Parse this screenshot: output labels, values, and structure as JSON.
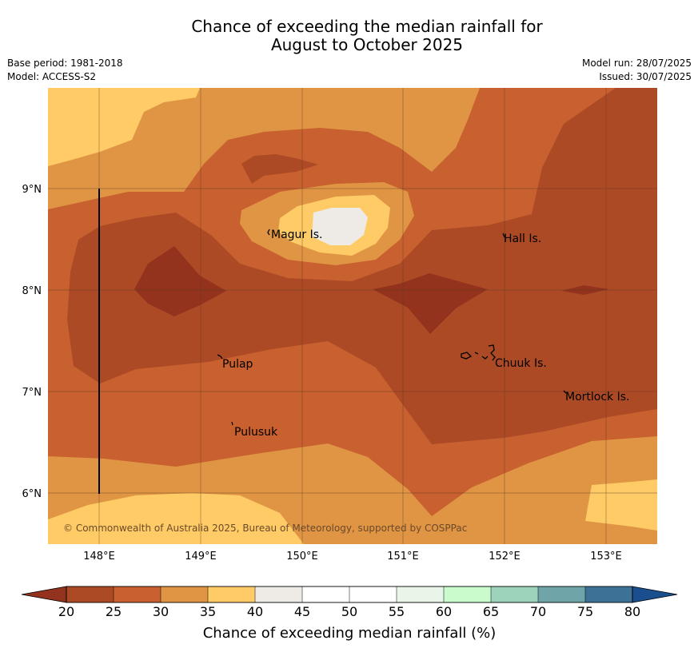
{
  "title": {
    "line1": "Chance of exceeding the median rainfall for",
    "line2": "August to October 2025"
  },
  "meta": {
    "base_period": "Base period: 1981-2018",
    "model": "Model: ACCESS-S2",
    "model_run": "Model run: 28/07/2025",
    "issued": "Issued: 30/07/2025"
  },
  "map": {
    "lon_labels": [
      "148°E",
      "149°E",
      "150°E",
      "151°E",
      "152°E",
      "153°E"
    ],
    "lat_labels": [
      "9°N",
      "8°N",
      "7°N",
      "6°N"
    ],
    "places": {
      "magur": "Magur Is.",
      "hall": "Hall Is.",
      "pulap": "Pulap",
      "chuuk": "Chuuk Is.",
      "mortlock": "Mortlock Is.",
      "pulusuk": "Pulusuk"
    },
    "copyright": "© Commonwealth of Australia 2025, Bureau of Meteorology, supported by COSPPac"
  },
  "colorbar": {
    "ticks": [
      "20",
      "25",
      "30",
      "35",
      "40",
      "45",
      "50",
      "55",
      "60",
      "65",
      "70",
      "75",
      "80"
    ],
    "title": "Chance of exceeding median rainfall (%)",
    "colors": [
      "#ad4a26",
      "#c8602f",
      "#e09544",
      "#fecb66",
      "#eeebe7",
      "#ffffff",
      "#ffffff",
      "#e9f5e8",
      "#c9fbcc",
      "#9dd3bb",
      "#6fa4a8",
      "#3e7196"
    ],
    "under_color": "#93331e",
    "over_color": "#1b4e8e"
  }
}
